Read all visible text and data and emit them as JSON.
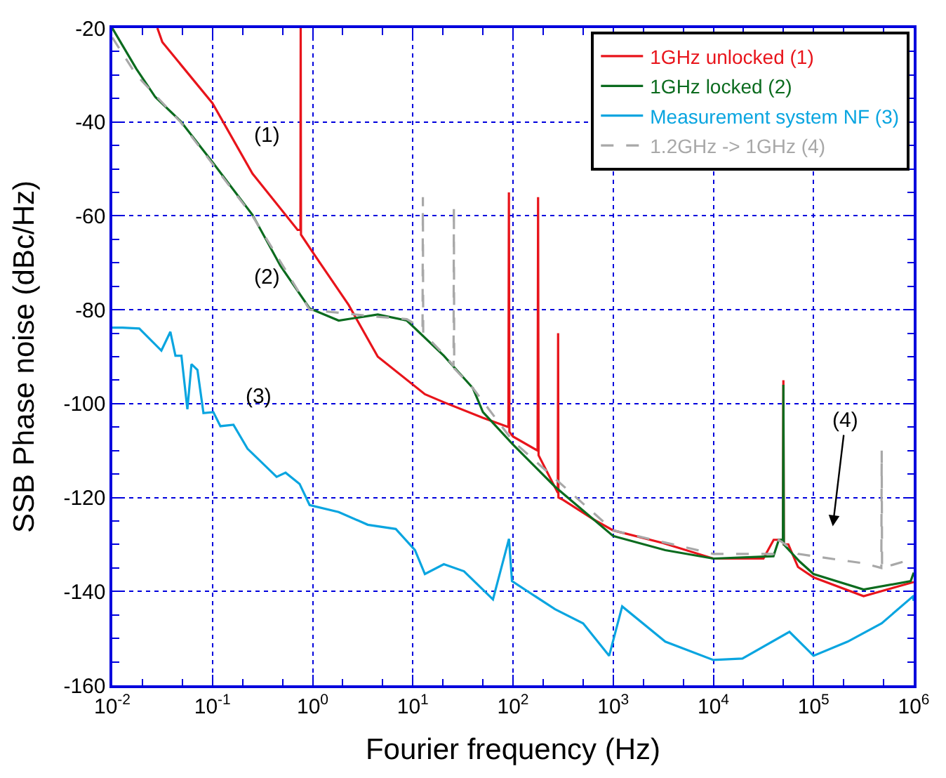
{
  "chart_data": {
    "type": "line",
    "xlabel": "Fourier frequency (Hz)",
    "ylabel": "SSB Phase noise (dBc/Hz)",
    "log": "x",
    "grid": true,
    "legend": "top right",
    "marker": "none",
    "xlim": [
      0.01,
      1000000
    ],
    "ylim": [
      -160,
      -20
    ],
    "xticks": [
      {
        "value": 0.01,
        "label": "10$^{-2}$"
      },
      {
        "value": 0.1,
        "label": "10$^{-1}$"
      },
      {
        "value": 1,
        "label": "10$^{0}$"
      },
      {
        "value": 10,
        "label": "10$^{1}$"
      },
      {
        "value": 100,
        "label": "10$^{2}$"
      },
      {
        "value": 1000,
        "label": "10$^{3}$"
      },
      {
        "value": 10000,
        "label": "10$^{4}$"
      },
      {
        "value": 100000,
        "label": "10$^{5}$"
      },
      {
        "value": 1000000,
        "label": "10$^{6}$"
      }
    ],
    "yticks": [
      -160,
      -140,
      -120,
      -100,
      -80,
      -60,
      -40,
      -20
    ],
    "series": [
      {
        "name": "1GHz unlocked (1)",
        "color": "#e8141b",
        "line_style": "solid",
        "x": [
          0.0282,
          0.0316,
          0.1,
          0.251,
          0.708,
          0.755,
          0.76,
          0.765,
          1.02,
          2.29,
          4.47,
          13.2,
          20.4,
          50,
          90,
          91,
          92,
          100,
          176,
          178,
          180,
          280,
          282,
          284,
          316,
          631,
          1000,
          3162,
          10000,
          31600,
          40000,
          49500,
          50000,
          50500,
          56000,
          70000,
          100000,
          316000,
          1000000
        ],
        "values": [
          -20,
          -23,
          -36,
          -51,
          -63,
          -63,
          -20,
          -64,
          -68,
          -79,
          -90,
          -98,
          -99.7,
          -103,
          -105,
          -55,
          -106,
          -107,
          -110,
          -56,
          -111,
          -119,
          -85,
          -120,
          -120.5,
          -124.6,
          -127,
          -129.7,
          -133,
          -133,
          -129,
          -129,
          -95,
          -130,
          -130,
          -134.8,
          -137,
          -141,
          -138
        ]
      },
      {
        "name": "1GHz locked (2)",
        "color": "#0b6b1e",
        "line_style": "solid",
        "x": [
          0.01,
          0.0174,
          0.0269,
          0.0479,
          0.102,
          0.251,
          0.479,
          0.933,
          1.82,
          4.47,
          8.71,
          20.4,
          39.8,
          50.1,
          100,
          263,
          1000,
          3311,
          10000,
          39800,
          45000,
          49500,
          50000,
          50500,
          72400,
          100000,
          316000,
          933000,
          1000000
        ],
        "values": [
          -20,
          -28.7,
          -34.7,
          -39.8,
          -48.8,
          -59.8,
          -70.7,
          -79.7,
          -82.3,
          -81,
          -82.3,
          -89.8,
          -96.7,
          -101.8,
          -108.7,
          -117.7,
          -128.2,
          -131.2,
          -133,
          -132.5,
          -129,
          -129,
          -96,
          -130,
          -133.6,
          -136.3,
          -139.6,
          -137.8,
          -136
        ]
      },
      {
        "name": "Measurement system NF (3)",
        "color": "#0aa5e0",
        "line_style": "solid",
        "x": [
          0.01,
          0.0126,
          0.0186,
          0.0309,
          0.038,
          0.0427,
          0.049,
          0.0562,
          0.0617,
          0.0708,
          0.0813,
          0.102,
          0.12,
          0.162,
          0.224,
          0.437,
          0.537,
          0.741,
          0.933,
          1.82,
          3.55,
          6.76,
          10.5,
          13.2,
          20.4,
          32.4,
          63.1,
          91.2,
          97.7,
          263,
          501,
          912,
          1230,
          3311,
          10000,
          19500,
          57500,
          100000,
          219000,
          479000,
          977000,
          1000000
        ],
        "values": [
          -83.8,
          -83.8,
          -84,
          -88.7,
          -84.7,
          -89.8,
          -89.8,
          -101.2,
          -91.6,
          -92.8,
          -102,
          -101.8,
          -104.8,
          -104.5,
          -109.6,
          -115.6,
          -114.7,
          -117.1,
          -121.6,
          -123.1,
          -125.8,
          -126.7,
          -131.2,
          -136.3,
          -134.2,
          -135.7,
          -141.7,
          -128.8,
          -137.8,
          -143.8,
          -146.8,
          -153.7,
          -143.2,
          -150.7,
          -154.6,
          -154.3,
          -148.6,
          -153.7,
          -150.7,
          -146.8,
          -141.1,
          -142
        ]
      },
      {
        "name": "1.2GHz -> 1GHz (4)",
        "color": "#a8a8a8",
        "line_style": "dashed",
        "x": [
          0.01,
          0.0174,
          0.0479,
          0.251,
          0.933,
          4.47,
          8.71,
          12.5,
          12.6,
          12.7,
          20.4,
          25.5,
          25.7,
          25.9,
          39.8,
          100,
          1000,
          10000,
          39800,
          45000,
          70000,
          100000,
          316000,
          475000,
          479000,
          483000,
          1000000
        ],
        "values": [
          -22,
          -30,
          -40,
          -60,
          -80,
          -81.5,
          -82,
          -84,
          -56,
          -85,
          -89.5,
          -92,
          -58,
          -92.5,
          -96.7,
          -108,
          -127,
          -132,
          -132,
          -129,
          -132,
          -132.5,
          -134,
          -135,
          -110,
          -135,
          -133
        ]
      }
    ],
    "annotations": [
      "(1)",
      "(2)",
      "(3)",
      "(4)"
    ]
  }
}
